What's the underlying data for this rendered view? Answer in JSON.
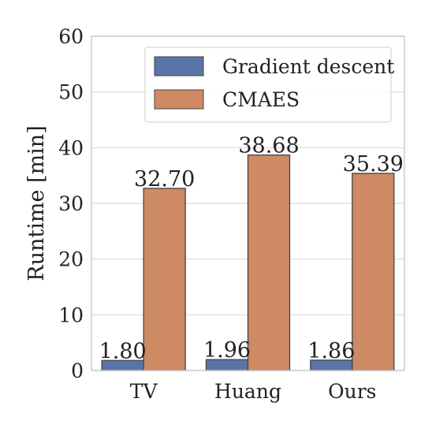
{
  "chart_data": {
    "type": "bar",
    "title": "",
    "xlabel": "",
    "ylabel": "Runtime [min]",
    "ylim": [
      0,
      60
    ],
    "yticks": [
      0,
      10,
      20,
      30,
      40,
      50,
      60
    ],
    "grid": true,
    "legend_position": "top-right",
    "categories": [
      "TV",
      "Huang",
      "Ours"
    ],
    "series": [
      {
        "name": "Gradient descent",
        "color": "#5a74a8",
        "values": [
          1.8,
          1.96,
          1.86
        ],
        "labels": [
          "1.80",
          "1.96",
          "1.86"
        ]
      },
      {
        "name": "CMAES",
        "color": "#cd8a63",
        "values": [
          32.7,
          38.68,
          35.39
        ],
        "labels": [
          "32.70",
          "38.68",
          "35.39"
        ]
      }
    ]
  }
}
